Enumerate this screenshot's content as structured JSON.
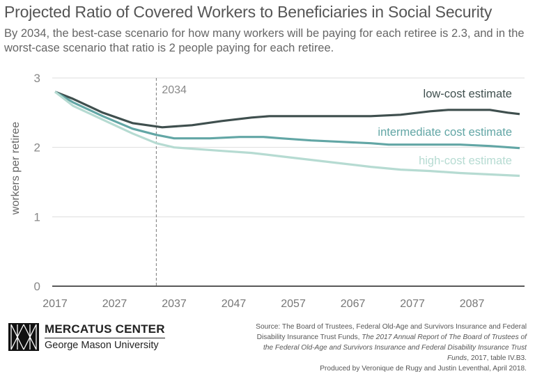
{
  "title": "Projected Ratio of Covered Workers to Beneficiaries in Social Security",
  "subtitle": "By 2034, the best-case scenario for how many workers will be paying for each retiree is 2.3, and in the worst-case scenario that ratio is 2 people paying for each retiree.",
  "chart_data": {
    "type": "line",
    "ylabel": "workers per retiree",
    "xlabel": "",
    "ylim": [
      0,
      3
    ],
    "xlim": [
      2017,
      2095
    ],
    "yticks": [
      0,
      1,
      2,
      3
    ],
    "xticks": [
      2017,
      2027,
      2037,
      2047,
      2057,
      2067,
      2077,
      2087
    ],
    "grid": "horizontal",
    "annotation": {
      "label": "2034",
      "x": 2034,
      "style": "dashed vertical line"
    },
    "series": [
      {
        "name": "low-cost estimate",
        "color": "#3f4f4e",
        "x": [
          2017,
          2020,
          2025,
          2030,
          2035,
          2040,
          2045,
          2050,
          2053,
          2070,
          2075,
          2080,
          2083,
          2090,
          2093,
          2095
        ],
        "y": [
          2.8,
          2.7,
          2.5,
          2.35,
          2.29,
          2.32,
          2.38,
          2.43,
          2.45,
          2.45,
          2.47,
          2.52,
          2.54,
          2.54,
          2.5,
          2.48
        ]
      },
      {
        "name": "intermediate cost estimate",
        "color": "#62a6a5",
        "x": [
          2017,
          2020,
          2025,
          2030,
          2034,
          2037,
          2043,
          2048,
          2052,
          2055,
          2060,
          2065,
          2070,
          2073,
          2085,
          2090,
          2095
        ],
        "y": [
          2.8,
          2.65,
          2.45,
          2.27,
          2.18,
          2.13,
          2.13,
          2.15,
          2.15,
          2.13,
          2.1,
          2.08,
          2.06,
          2.04,
          2.04,
          2.02,
          1.99
        ]
      },
      {
        "name": "high-cost estimate",
        "color": "#b6dbd2",
        "x": [
          2017,
          2020,
          2025,
          2030,
          2034,
          2037,
          2045,
          2050,
          2055,
          2060,
          2065,
          2070,
          2075,
          2080,
          2085,
          2090,
          2095
        ],
        "y": [
          2.8,
          2.6,
          2.4,
          2.2,
          2.06,
          2.0,
          1.95,
          1.92,
          1.87,
          1.82,
          1.77,
          1.72,
          1.68,
          1.66,
          1.63,
          1.61,
          1.59
        ]
      }
    ]
  },
  "footer": {
    "logo_name": "MERCATUS CENTER",
    "logo_university": "George Mason University",
    "source_1": "Source: The Board of Trustees, Federal Old-Age and Survivors Insurance and Federal Disability Insurance Trust Funds, ",
    "source_italic": "The 2017 Annual Report of The Board of Trustees of the Federal Old-Age and Survivors Insurance and Federal Disability Insurance Trust Funds",
    "source_2": ", 2017, table IV.B3.",
    "credit": "Produced by Veronique de Rugy and Justin Leventhal, April 2018."
  }
}
